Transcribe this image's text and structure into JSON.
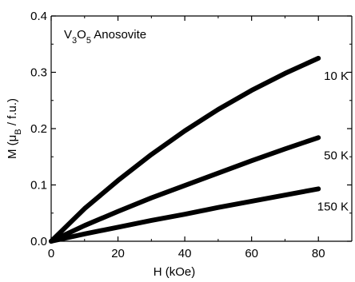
{
  "chart_data": {
    "type": "line",
    "annotation": {
      "parts": [
        {
          "text": "V",
          "sub": false
        },
        {
          "text": "3",
          "sub": true
        },
        {
          "text": "O",
          "sub": false
        },
        {
          "text": "5",
          "sub": true
        },
        {
          "text": " Anosovite",
          "sub": false
        }
      ]
    },
    "xlabel": "H (kOe)",
    "ylabel": {
      "parts": [
        {
          "text": "M (μ",
          "sub": false
        },
        {
          "text": "B",
          "sub": true
        },
        {
          "text": " / f.u.)",
          "sub": false
        }
      ]
    },
    "xlim": [
      0,
      90
    ],
    "ylim": [
      0,
      0.4
    ],
    "xticks": [
      0,
      20,
      40,
      60,
      80
    ],
    "yticks": [
      0.0,
      0.1,
      0.2,
      0.3,
      0.4
    ],
    "ytick_labels": [
      "0.0",
      "0.1",
      "0.2",
      "0.3",
      "0.4"
    ],
    "grid": false,
    "series": [
      {
        "name": "10 K",
        "color": "#000000",
        "x": [
          0,
          10,
          20,
          30,
          40,
          50,
          60,
          70,
          80
        ],
        "y": [
          0,
          0.058,
          0.108,
          0.154,
          0.196,
          0.234,
          0.268,
          0.298,
          0.325
        ]
      },
      {
        "name": "50 K",
        "color": "#000000",
        "x": [
          0,
          10,
          20,
          30,
          40,
          50,
          60,
          70,
          80
        ],
        "y": [
          0,
          0.028,
          0.053,
          0.077,
          0.099,
          0.121,
          0.143,
          0.164,
          0.184
        ]
      },
      {
        "name": "150 K",
        "color": "#000000",
        "x": [
          0,
          10,
          20,
          30,
          40,
          50,
          60,
          70,
          80
        ],
        "y": [
          0,
          0.013,
          0.025,
          0.037,
          0.048,
          0.06,
          0.071,
          0.082,
          0.093
        ]
      }
    ]
  }
}
